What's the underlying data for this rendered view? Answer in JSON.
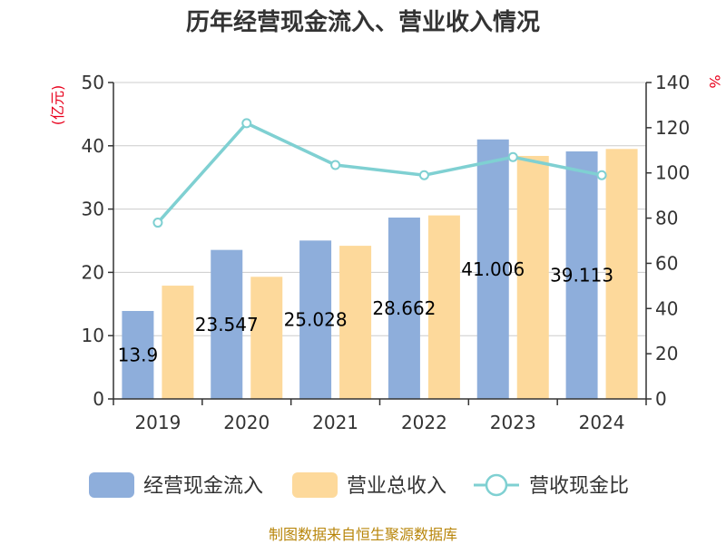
{
  "chart_data": {
    "type": "bar",
    "title": "历年经营现金流入、营业收入情况",
    "categories": [
      "2019",
      "2020",
      "2021",
      "2022",
      "2023",
      "2024"
    ],
    "left_axis": {
      "unit": "(亿元)",
      "ylim": [
        0,
        50
      ],
      "ticks": [
        0,
        10,
        20,
        30,
        40,
        50
      ]
    },
    "right_axis": {
      "unit": "%",
      "ylim": [
        0,
        140
      ],
      "ticks": [
        0,
        20,
        40,
        60,
        80,
        100,
        120,
        140
      ]
    },
    "series": [
      {
        "name": "经营现金流入",
        "type": "bar",
        "axis": "left",
        "color": "#8eaedb",
        "values": [
          13.9,
          23.547,
          25.028,
          28.662,
          41.006,
          39.113
        ],
        "labels": [
          "13.9",
          "23.547",
          "25.028",
          "28.662",
          "41.006",
          "39.113"
        ]
      },
      {
        "name": "营业总收入",
        "type": "bar",
        "axis": "left",
        "color": "#fdd99b",
        "values": [
          17.9,
          19.3,
          24.2,
          29.0,
          38.4,
          39.5
        ]
      },
      {
        "name": "营收现金比",
        "type": "line",
        "axis": "right",
        "color": "#7fd0d2",
        "values": [
          78,
          122,
          103.5,
          99,
          107,
          99
        ]
      }
    ],
    "grid": true,
    "legend_position": "bottom"
  },
  "source_text": "制图数据来自恒生聚源数据库"
}
